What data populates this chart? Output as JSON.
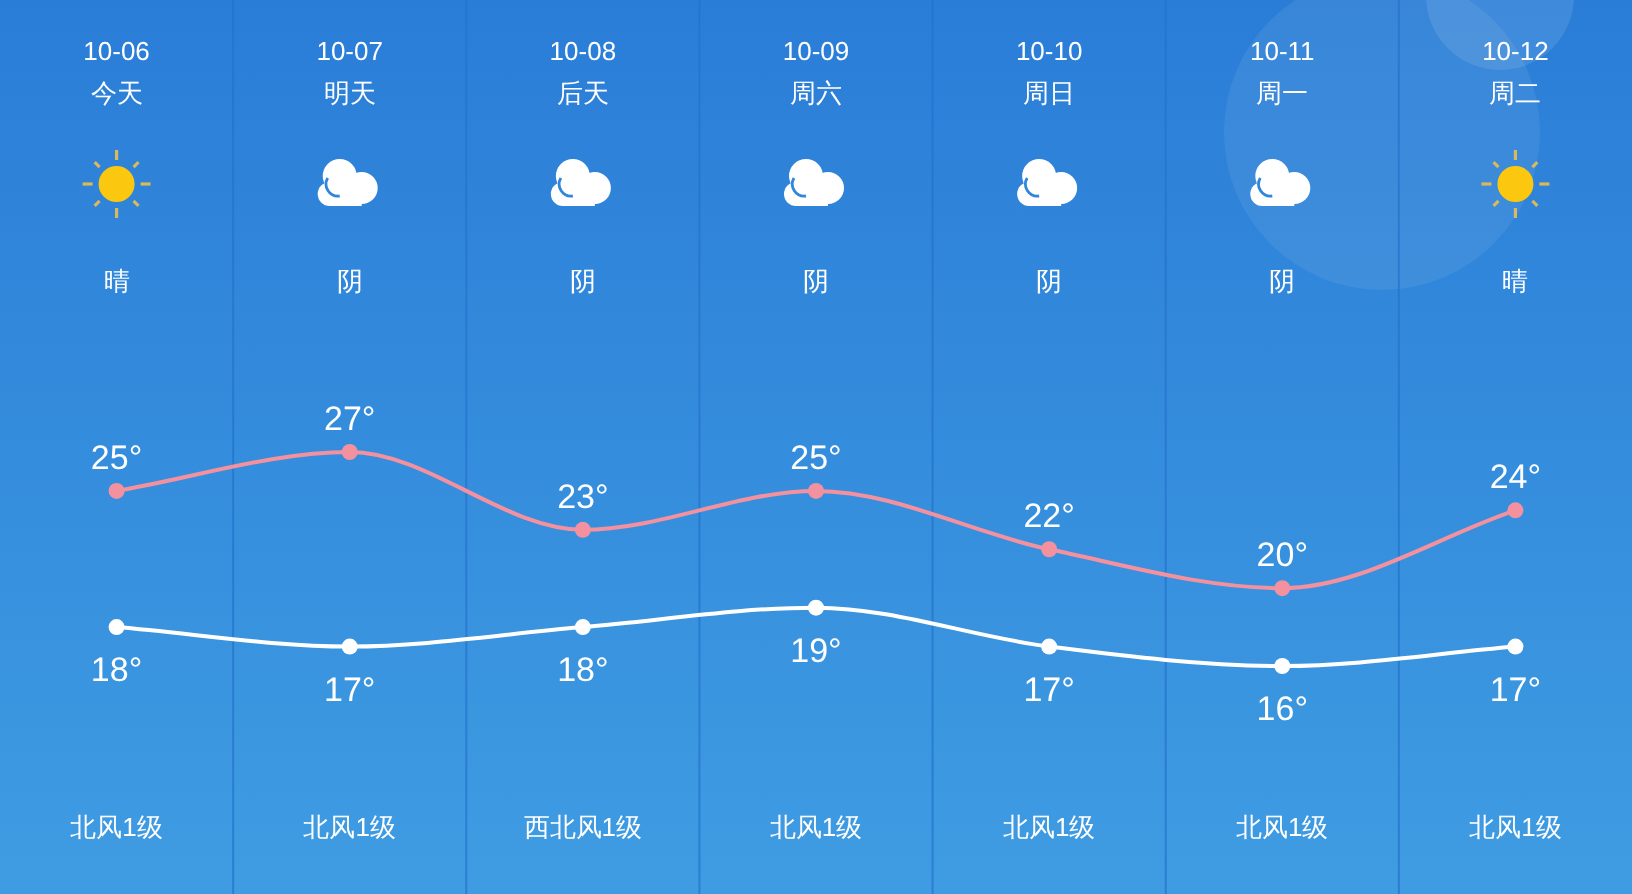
{
  "chart_data": {
    "type": "line",
    "categories": [
      "10-06\n今天",
      "10-07\n明天",
      "10-08\n后天",
      "10-09\n周六",
      "10-10\n周日",
      "10-11\n周一",
      "10-12\n周二"
    ],
    "series": [
      {
        "color": "#f4919f",
        "values": [
          25,
          27,
          23,
          25,
          22,
          20,
          24
        ],
        "value_labels": [
          "25°",
          "27°",
          "23°",
          "25°",
          "22°",
          "20°",
          "24°"
        ]
      },
      {
        "color": "#ffffff",
        "values": [
          18,
          17,
          18,
          19,
          17,
          16,
          17
        ],
        "value_labels": [
          "18°",
          "17°",
          "18°",
          "19°",
          "17°",
          "16°",
          "17°"
        ]
      }
    ],
    "marker": "circle",
    "line_style": "solid",
    "grid": "x",
    "annotations": [
      "晴",
      "阴",
      "阴",
      "阴",
      "阴",
      "阴",
      "晴",
      "北风1级",
      "北风1级",
      "西北风1级",
      "北风1级",
      "北风1级",
      "北风1级",
      "北风1级"
    ]
  }
}
